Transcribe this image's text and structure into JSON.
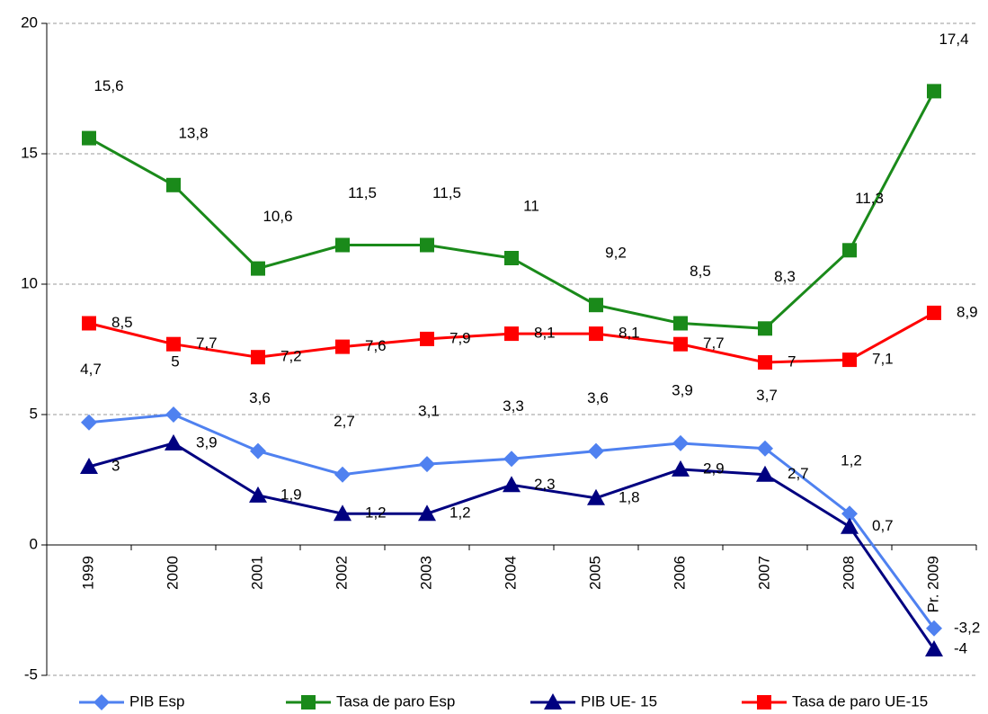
{
  "chart_data": {
    "type": "line",
    "categories": [
      "1999",
      "2000",
      "2001",
      "2002",
      "2003",
      "2004",
      "2005",
      "2006",
      "2007",
      "2008",
      "Pr. 2009"
    ],
    "series": [
      {
        "name": "PIB Esp",
        "color": "#4f81f0",
        "marker": "diamond",
        "values": [
          4.7,
          5,
          3.6,
          2.7,
          3.1,
          3.3,
          3.6,
          3.9,
          3.7,
          1.2,
          -3.2
        ],
        "value_labels": [
          "4,7",
          "5",
          "3,6",
          "2,7",
          "3,1",
          "3,3",
          "3,6",
          "3,9",
          "3,7",
          "1,2",
          "-3,2"
        ]
      },
      {
        "name": "Tasa de paro Esp",
        "color": "#1a8a1a",
        "marker": "square",
        "values": [
          15.6,
          13.8,
          10.6,
          11.5,
          11.5,
          11,
          9.2,
          8.5,
          8.3,
          11.3,
          17.4
        ],
        "value_labels": [
          "15,6",
          "13,8",
          "10,6",
          "11,5",
          "11,5",
          "11",
          "9,2",
          "8,5",
          "8,3",
          "11,3",
          "17,4"
        ]
      },
      {
        "name": "PIB UE- 15",
        "color": "#000080",
        "marker": "triangle",
        "values": [
          3,
          3.9,
          1.9,
          1.2,
          1.2,
          2.3,
          1.8,
          2.9,
          2.7,
          0.7,
          -4
        ],
        "value_labels": [
          "3",
          "3,9",
          "1,9",
          "1,2",
          "1,2",
          "2,3",
          "1,8",
          "2,9",
          "2,7",
          "0,7",
          "-4"
        ]
      },
      {
        "name": "Tasa de paro UE-15",
        "color": "#ff0000",
        "marker": "square",
        "values": [
          8.5,
          7.7,
          7.2,
          7.6,
          7.9,
          8.1,
          8.1,
          7.7,
          7,
          7.1,
          8.9
        ],
        "value_labels": [
          "8,5",
          "7,7",
          "7,2",
          "7,6",
          "7,9",
          "8,1",
          "8,1",
          "7,7",
          "7",
          "7,1",
          "8,9"
        ]
      }
    ],
    "ylim": [
      -5,
      20
    ],
    "yticks": [
      -5,
      0,
      5,
      10,
      15,
      20
    ],
    "grid": true,
    "legend": "bottom"
  }
}
